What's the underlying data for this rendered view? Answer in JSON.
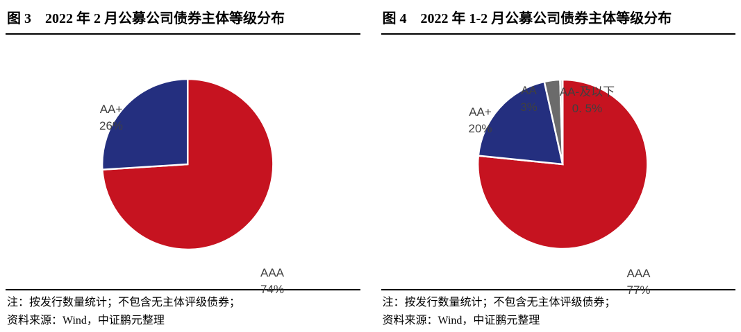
{
  "panels": [
    {
      "figure_label": "图 3",
      "title": "2022 年 2 月公募公司债券主体等级分布",
      "note_line1": "注：按发行数量统计；不包含无主体评级债券；",
      "note_line2": "资料来源：Wind，中证鹏元整理"
    },
    {
      "figure_label": "图 4",
      "title": "2022 年 1-2 月公募公司债券主体等级分布",
      "note_line1": "注：按发行数量统计；不包含无主体评级债券；",
      "note_line2": "资料来源：Wind，中证鹏元整理"
    }
  ],
  "chart_data": [
    {
      "type": "pie",
      "title": "2022 年 2 月公募公司债券主体等级分布",
      "start_angle_deg": 0,
      "direction": "clockwise",
      "legend_position": "none",
      "border_color": "#FFFFFF",
      "label_text_color": "#404040",
      "slices": [
        {
          "label": "AAA",
          "value": 74,
          "pct_text": "74%",
          "color": "#C61320"
        },
        {
          "label": "AA+",
          "value": 26,
          "pct_text": "26%",
          "color": "#242F7F"
        }
      ]
    },
    {
      "type": "pie",
      "title": "2022 年 1-2 月公募公司债券主体等级分布",
      "start_angle_deg": 0,
      "direction": "clockwise",
      "legend_position": "none",
      "border_color": "#FFFFFF",
      "label_text_color": "#404040",
      "slices": [
        {
          "label": "AAA",
          "value": 77,
          "pct_text": "77%",
          "color": "#C61320"
        },
        {
          "label": "AA+",
          "value": 20,
          "pct_text": "20%",
          "color": "#242F7F"
        },
        {
          "label": "AA",
          "value": 3,
          "pct_text": "3%",
          "color": "#6B6B6B"
        },
        {
          "label": "AA-及以下",
          "value": 0.5,
          "pct_text": "0. 5%",
          "color": "#D9D9D9"
        }
      ]
    }
  ]
}
